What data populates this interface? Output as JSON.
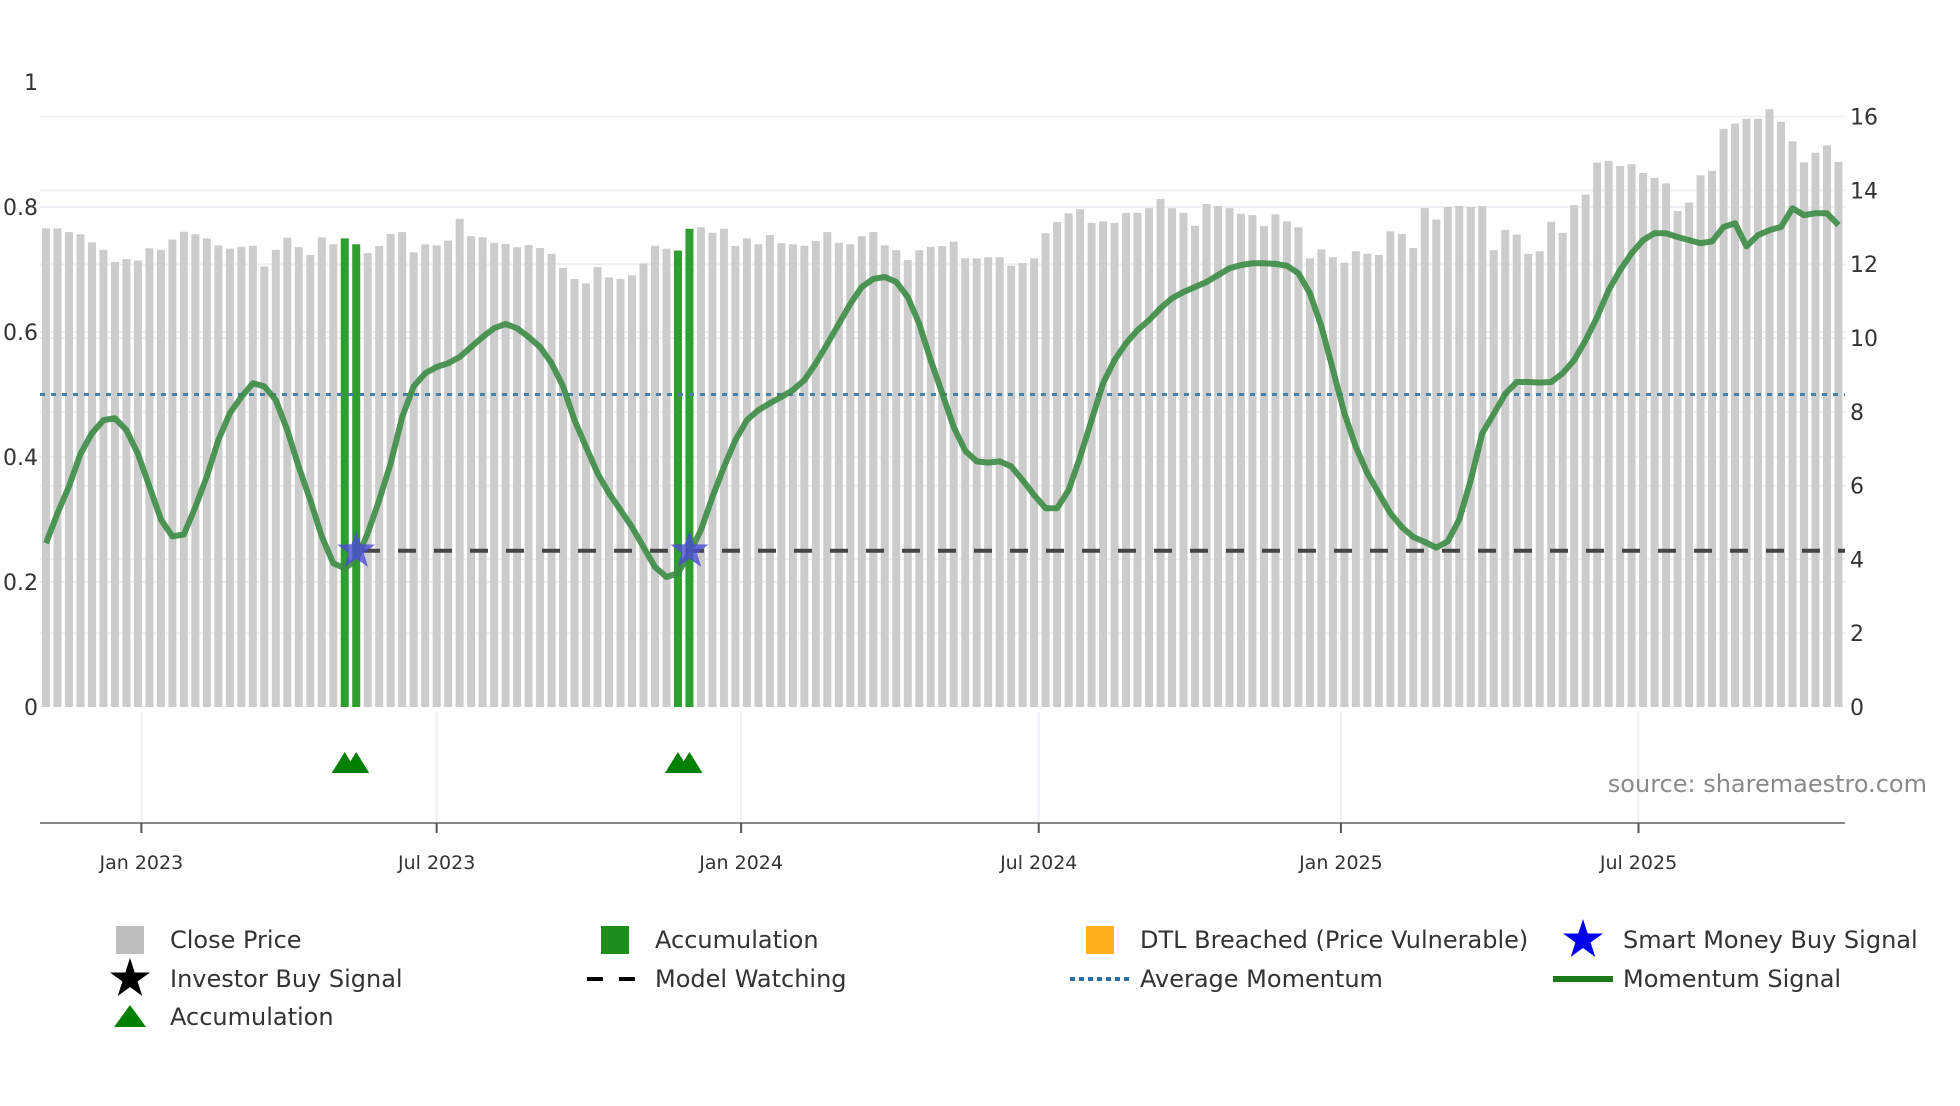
{
  "chart_data": {
    "type": "bar",
    "source": "source: sharemaestro.com",
    "left_axis": {
      "ticks": [
        0,
        0.2,
        0.4,
        0.6,
        0.8,
        1
      ],
      "tick_labels": [
        "0",
        "0.2",
        "0.4",
        "0.6",
        "0.8",
        "1"
      ],
      "range": [
        0,
        1
      ]
    },
    "right_axis": {
      "ticks": [
        0,
        2,
        4,
        6,
        8,
        10,
        12,
        14,
        16
      ],
      "tick_labels": [
        "0",
        "2",
        "4",
        "6",
        "8",
        "10",
        "12",
        "14",
        "16"
      ],
      "range": [
        0,
        16.1
      ]
    },
    "x_axis": {
      "unit": "week index",
      "range": [
        0,
        156
      ],
      "ticks": [
        {
          "label": "Jan 2023",
          "x": 8.3
        },
        {
          "label": "Jul 2023",
          "x": 34.0
        },
        {
          "label": "Jan 2024",
          "x": 60.5
        },
        {
          "label": "Jul 2024",
          "x": 86.4
        },
        {
          "label": "Jan 2025",
          "x": 112.7
        },
        {
          "label": "Jul 2025",
          "x": 138.6
        }
      ]
    },
    "close_price": [
      12.97,
      12.97,
      12.87,
      12.81,
      12.59,
      12.39,
      12.06,
      12.14,
      12.1,
      12.43,
      12.39,
      12.67,
      12.88,
      12.81,
      12.7,
      12.51,
      12.42,
      12.47,
      12.5,
      11.94,
      12.39,
      12.72,
      12.46,
      12.25,
      12.73,
      12.54,
      12.7,
      12.54,
      12.3,
      12.49,
      12.82,
      12.87,
      12.32,
      12.54,
      12.51,
      12.64,
      13.23,
      12.76,
      12.73,
      12.58,
      12.55,
      12.46,
      12.52,
      12.44,
      12.28,
      11.9,
      11.6,
      11.48,
      11.92,
      11.64,
      11.6,
      11.7,
      12.02,
      12.5,
      12.42,
      12.37,
      12.96,
      13.0,
      12.85,
      12.96,
      12.49,
      12.7,
      12.54,
      12.79,
      12.57,
      12.54,
      12.5,
      12.63,
      12.87,
      12.58,
      12.54,
      12.76,
      12.87,
      12.51,
      12.38,
      12.11,
      12.38,
      12.47,
      12.49,
      12.61,
      12.16,
      12.16,
      12.19,
      12.19,
      11.96,
      12.03,
      12.16,
      12.84,
      13.14,
      13.38,
      13.49,
      13.12,
      13.16,
      13.12,
      13.39,
      13.39,
      13.52,
      13.77,
      13.52,
      13.39,
      13.04,
      13.63,
      13.58,
      13.52,
      13.37,
      13.33,
      13.04,
      13.35,
      13.16,
      13.0,
      12.16,
      12.4,
      12.19,
      12.04,
      12.35,
      12.28,
      12.25,
      12.89,
      12.82,
      12.44,
      13.52,
      13.21,
      13.55,
      13.58,
      13.55,
      13.57,
      12.38,
      12.93,
      12.8,
      12.28,
      12.35,
      13.15,
      12.85,
      13.6,
      13.89,
      14.75,
      14.8,
      14.66,
      14.71,
      14.47,
      14.34,
      14.19,
      13.44,
      13.67,
      14.41,
      14.53,
      15.67,
      15.81,
      15.94,
      15.94,
      16.2,
      15.86,
      15.33,
      14.76,
      15.02,
      15.22,
      14.77
    ],
    "accumulation_bars": [
      26,
      27,
      55,
      56
    ],
    "momentum_signal": [
      0.262,
      0.31,
      0.353,
      0.405,
      0.438,
      0.459,
      0.462,
      0.443,
      0.405,
      0.353,
      0.3,
      0.273,
      0.276,
      0.32,
      0.369,
      0.427,
      0.47,
      0.496,
      0.518,
      0.513,
      0.491,
      0.443,
      0.384,
      0.331,
      0.273,
      0.23,
      0.222,
      0.235,
      0.278,
      0.331,
      0.39,
      0.464,
      0.513,
      0.534,
      0.544,
      0.55,
      0.56,
      0.576,
      0.592,
      0.606,
      0.613,
      0.606,
      0.592,
      0.576,
      0.55,
      0.513,
      0.459,
      0.416,
      0.374,
      0.342,
      0.315,
      0.288,
      0.256,
      0.224,
      0.208,
      0.214,
      0.246,
      0.283,
      0.336,
      0.384,
      0.427,
      0.459,
      0.475,
      0.486,
      0.496,
      0.507,
      0.523,
      0.55,
      0.581,
      0.613,
      0.645,
      0.672,
      0.685,
      0.688,
      0.68,
      0.656,
      0.613,
      0.555,
      0.502,
      0.448,
      0.41,
      0.393,
      0.391,
      0.393,
      0.385,
      0.363,
      0.339,
      0.318,
      0.318,
      0.347,
      0.4,
      0.459,
      0.518,
      0.555,
      0.582,
      0.603,
      0.619,
      0.638,
      0.654,
      0.664,
      0.672,
      0.68,
      0.691,
      0.702,
      0.707,
      0.71,
      0.71,
      0.709,
      0.706,
      0.694,
      0.662,
      0.609,
      0.54,
      0.47,
      0.416,
      0.374,
      0.342,
      0.31,
      0.288,
      0.272,
      0.264,
      0.255,
      0.265,
      0.3,
      0.363,
      0.438,
      0.469,
      0.501,
      0.52,
      0.52,
      0.519,
      0.52,
      0.534,
      0.555,
      0.587,
      0.624,
      0.667,
      0.699,
      0.726,
      0.747,
      0.758,
      0.758,
      0.752,
      0.747,
      0.742,
      0.745,
      0.768,
      0.774,
      0.737,
      0.755,
      0.763,
      0.768,
      0.798,
      0.787,
      0.79,
      0.79,
      0.771
    ],
    "average_momentum": 0.5,
    "model_watching": {
      "value": 0.25,
      "from_x": 27.5
    },
    "smart_money_buy_signals": [
      {
        "x": 27,
        "y": 0.25
      },
      {
        "x": 56,
        "y": 0.25
      }
    ],
    "accumulation_markers": [
      26,
      27,
      55,
      56
    ],
    "legend": [
      {
        "label": "Close Price",
        "symbol": "square",
        "color": "#bdbdbd"
      },
      {
        "label": "Accumulation",
        "symbol": "square",
        "color": "#1f8c1f"
      },
      {
        "label": "DTL Breached (Price Vulnerable)",
        "symbol": "square",
        "color": "#ffae1a"
      },
      {
        "label": "Smart Money Buy Signal",
        "symbol": "star",
        "color": "#0000ee"
      },
      {
        "label": "Investor Buy Signal",
        "symbol": "star",
        "color": "#000000"
      },
      {
        "label": "Model Watching",
        "symbol": "dash",
        "color": "#000000"
      },
      {
        "label": "Average Momentum",
        "symbol": "dot",
        "color": "#2b6fa8"
      },
      {
        "label": "Momentum Signal",
        "symbol": "line",
        "color": "#1a7a1a"
      },
      {
        "label": "Accumulation",
        "symbol": "triangle",
        "color": "#008000"
      }
    ],
    "legend_position": "bottom",
    "colors": {
      "bar": "#cccccc",
      "accumulation_bar": "#2e9e2e",
      "momentum": "#3c8c44",
      "avg": "#4a7fa8",
      "watch": "#444444",
      "star": "#4b4bd6",
      "triangle": "#008000",
      "grid": "#edf0f4"
    }
  }
}
